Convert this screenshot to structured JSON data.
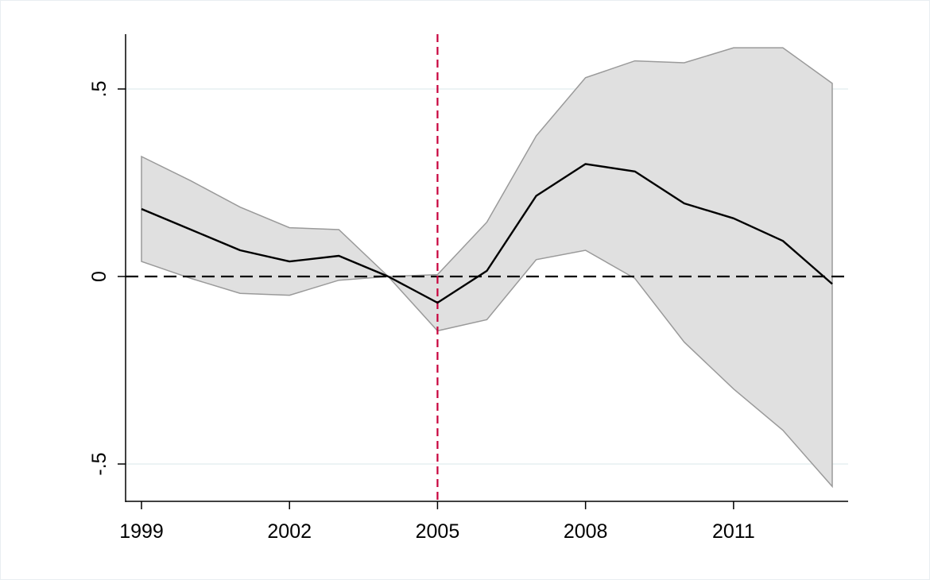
{
  "chart_data": {
    "type": "area",
    "title": "",
    "xlabel": "",
    "ylabel": "",
    "x": [
      1999,
      2000,
      2001,
      2002,
      2003,
      2004,
      2005,
      2006,
      2007,
      2008,
      2009,
      2010,
      2011,
      2012,
      2013
    ],
    "series": [
      {
        "role": "estimate",
        "values": [
          0.18,
          0.125,
          0.07,
          0.04,
          0.055,
          0.0,
          -0.07,
          0.015,
          0.215,
          0.3,
          0.28,
          0.195,
          0.155,
          0.095,
          -0.02
        ]
      },
      {
        "role": "ci_upper",
        "values": [
          0.32,
          0.255,
          0.185,
          0.13,
          0.125,
          0.0,
          0.005,
          0.145,
          0.375,
          0.53,
          0.575,
          0.57,
          0.61,
          0.61,
          0.515
        ]
      },
      {
        "role": "ci_lower",
        "values": [
          0.04,
          -0.005,
          -0.045,
          -0.05,
          -0.01,
          0.0,
          -0.145,
          -0.115,
          0.045,
          0.07,
          -0.005,
          -0.175,
          -0.3,
          -0.41,
          -0.56
        ]
      }
    ],
    "xticks": [
      1999,
      2002,
      2005,
      2008,
      2011
    ],
    "xtick_labels": [
      "1999",
      "2002",
      "2005",
      "2008",
      "2011"
    ],
    "yticks": [
      -0.5,
      0,
      0.5
    ],
    "ytick_labels": [
      "-.5",
      "0",
      ".5"
    ],
    "xlim": [
      1999,
      2013
    ],
    "ylim": [
      -0.6,
      0.65
    ],
    "reference_lines": {
      "horizontal_y": 0,
      "vertical_x": 2005
    },
    "grid": "horizontal",
    "colors": {
      "band_fill": "#e0e0e0",
      "band_edge": "#9a9a9a",
      "line": "#000000",
      "zero_line": "#000000",
      "event_line": "#c8003c",
      "grid": "#e6eff1"
    }
  }
}
